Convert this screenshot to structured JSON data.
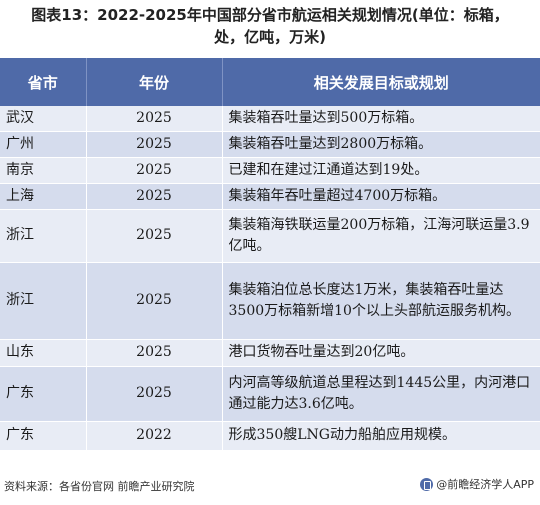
{
  "title": {
    "line1": "图表13：2022-2025年中国部分省市航运相关规划情况(单位：标箱，",
    "line2": "处，亿吨，万米)"
  },
  "table": {
    "headers": [
      "省市",
      "年份",
      "相关发展目标或规划"
    ],
    "rows": [
      {
        "province": "武汉",
        "year": "2025",
        "goal": "集装箱吞吐量达到500万标箱。"
      },
      {
        "province": "广州",
        "year": "2025",
        "goal": "集装箱吞吐量达到2800万标箱。"
      },
      {
        "province": "南京",
        "year": "2025",
        "goal": "已建和在建过江通道达到19处。"
      },
      {
        "province": "上海",
        "year": "2025",
        "goal": "集装箱年吞吐量超过4700万标箱。"
      },
      {
        "province": "浙江",
        "year": "2025",
        "goal": "集装箱海铁联运量200万标箱，江海河联运量3.9亿吨。"
      },
      {
        "province": "浙江",
        "year": "2025",
        "goal": "集装箱泊位总长度达1万米，集装箱吞吐量达3500万标箱新增10个以上头部航运服务机构。"
      },
      {
        "province": "山东",
        "year": "2025",
        "goal": "港口货物吞吐量达到20亿吨。"
      },
      {
        "province": "广东",
        "year": "2025",
        "goal": "内河高等级航道总里程达到1445公里，内河港口通过能力达3.6亿吨。"
      },
      {
        "province": "广东",
        "year": "2022",
        "goal": "形成350艘LNG动力船舶应用规模。"
      }
    ]
  },
  "footer": {
    "source": "资料来源：各省份官网 前瞻产业研究院",
    "brand": "@前瞻经济学人APP",
    "brand_icon": "qianzhan-logo-icon"
  },
  "colors": {
    "header_bg": "#4f6aa8",
    "row_light": "#e8ecf5",
    "row_dark": "#d5dced"
  }
}
